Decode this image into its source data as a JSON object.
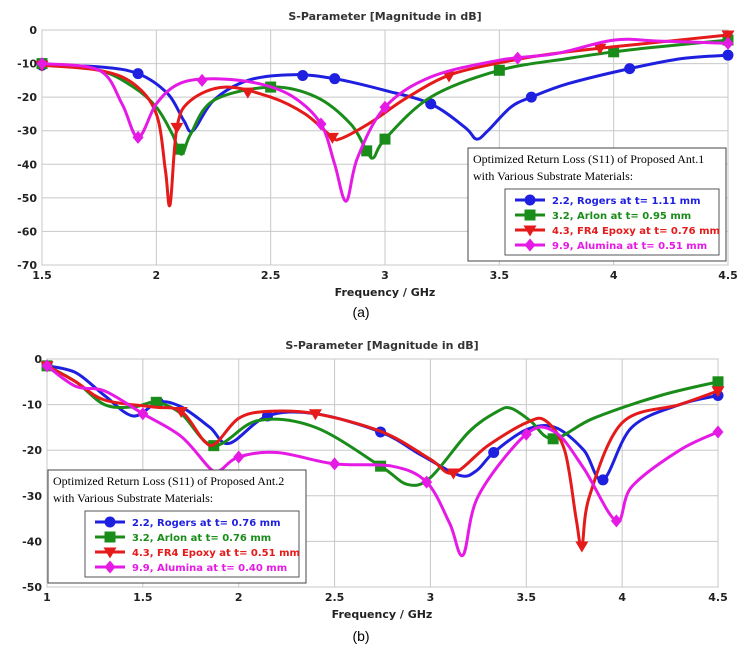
{
  "chart_data": [
    {
      "type": "line",
      "title": "S-Parameter [Magnitude in dB]",
      "xlabel": "Frequency / GHz",
      "ylabel": "",
      "caption": "(a)",
      "xlim": [
        1.5,
        4.5
      ],
      "ylim": [
        -70,
        0
      ],
      "xticks": [
        "1.5",
        "2",
        "2.5",
        "3",
        "3.5",
        "4",
        "4.5"
      ],
      "yticks": [
        "0",
        "-10",
        "-20",
        "-30",
        "-40",
        "-50",
        "-60",
        "-70"
      ],
      "grid": true,
      "legend_position": "bottom-right",
      "legend_title": [
        "Optimized Return Loss (S11) of Proposed Ant.1",
        "with Various Substrate Materials:"
      ],
      "series": [
        {
          "name": "2.2, Rogers at t= 1.11 mm",
          "color": "#1f1fe0",
          "marker": "circle",
          "x": [
            1.5,
            1.75,
            1.92,
            2.05,
            2.12,
            2.16,
            2.25,
            2.4,
            2.6,
            2.78,
            3.0,
            3.2,
            3.35,
            3.4,
            3.45,
            3.55,
            3.64,
            3.8,
            4.07,
            4.3,
            4.5
          ],
          "y": [
            -10.5,
            -11,
            -13,
            -19,
            -27,
            -30,
            -21,
            -15,
            -13.3,
            -14.5,
            -18,
            -22,
            -29,
            -32.5,
            -30,
            -23,
            -20,
            -16,
            -11.5,
            -8.5,
            -7.5
          ]
        },
        {
          "name": "3.2, Arlon at t= 0.95 mm",
          "color": "#1a8c1a",
          "marker": "square",
          "x": [
            1.5,
            1.75,
            1.9,
            2.0,
            2.07,
            2.11,
            2.15,
            2.25,
            2.5,
            2.7,
            2.85,
            2.92,
            2.95,
            3.0,
            3.2,
            3.5,
            3.8,
            4.0,
            4.2,
            4.5
          ],
          "y": [
            -10,
            -12,
            -17,
            -23,
            -31,
            -37,
            -31,
            -21,
            -17,
            -20,
            -28,
            -36,
            -38,
            -32.5,
            -20,
            -12,
            -8.5,
            -6.5,
            -5,
            -3
          ]
        },
        {
          "name": "4.3, FR4 Epoxy at t= 0.76 mm",
          "color": "#e51a1a",
          "marker": "triangle",
          "x": [
            1.5,
            1.75,
            1.9,
            2.0,
            2.04,
            2.06,
            2.09,
            2.15,
            2.3,
            2.5,
            2.65,
            2.77,
            2.8,
            2.85,
            2.95,
            3.1,
            3.3,
            3.6,
            3.8,
            4.0,
            4.5
          ],
          "y": [
            -10.5,
            -12,
            -16,
            -25,
            -42,
            -52,
            -29,
            -21,
            -17,
            -20,
            -25,
            -32,
            -32.5,
            -31,
            -27,
            -20,
            -13,
            -8.5,
            -6.5,
            -5,
            -1.5
          ]
        },
        {
          "name": "9.9, Alumina at t= 0.51 mm",
          "color": "#e51ae5",
          "marker": "diamond",
          "x": [
            1.5,
            1.75,
            1.85,
            1.92,
            2.0,
            2.1,
            2.25,
            2.45,
            2.6,
            2.72,
            2.78,
            2.83,
            2.88,
            3.0,
            3.2,
            3.5,
            3.75,
            4.0,
            4.2,
            4.5
          ],
          "y": [
            -10,
            -12,
            -22,
            -32,
            -22,
            -16,
            -14.5,
            -16,
            -20,
            -28,
            -40,
            -51,
            -38,
            -23,
            -14,
            -9,
            -7,
            -3,
            -3.3,
            -4
          ]
        }
      ]
    },
    {
      "type": "line",
      "title": "S-Parameter [Magnitude in dB]",
      "xlabel": "Frequency / GHz",
      "ylabel": "",
      "caption": "(b)",
      "xlim": [
        1,
        4.5
      ],
      "ylim": [
        -50,
        0
      ],
      "xticks": [
        "1",
        "1.5",
        "2",
        "2.5",
        "3",
        "3.5",
        "4",
        "4.5"
      ],
      "yticks": [
        "0",
        "-10",
        "-20",
        "-30",
        "-40",
        "-50"
      ],
      "grid": true,
      "legend_position": "bottom-left",
      "legend_title": [
        "Optimized Return Loss (S11) of Proposed Ant.2",
        "with Various Substrate Materials:"
      ],
      "series": [
        {
          "name": "2.2, Rogers at t= 0.76 mm",
          "color": "#1f1fe0",
          "marker": "circle",
          "x": [
            1.0,
            1.15,
            1.3,
            1.45,
            1.58,
            1.7,
            1.85,
            1.95,
            2.15,
            2.4,
            2.74,
            2.95,
            3.15,
            3.24,
            3.33,
            3.5,
            3.65,
            3.8,
            3.9,
            4.05,
            4.3,
            4.5
          ],
          "y": [
            -1.5,
            -3,
            -8,
            -12.5,
            -9.5,
            -10.5,
            -15,
            -18.5,
            -12.5,
            -12,
            -16,
            -21,
            -25.5,
            -24.5,
            -20.5,
            -15.5,
            -15,
            -20,
            -26.5,
            -15,
            -10,
            -8
          ]
        },
        {
          "name": "3.2, Arlon at t= 0.76 mm",
          "color": "#1a8c1a",
          "marker": "square",
          "x": [
            1.0,
            1.15,
            1.3,
            1.45,
            1.57,
            1.7,
            1.87,
            2.1,
            2.4,
            2.74,
            2.88,
            3.0,
            3.2,
            3.35,
            3.42,
            3.52,
            3.64,
            3.85,
            4.2,
            4.5
          ],
          "y": [
            -1.5,
            -5,
            -10,
            -10.5,
            -9.5,
            -12,
            -19,
            -13.5,
            -15,
            -23.5,
            -27.5,
            -26,
            -16,
            -11.5,
            -10.8,
            -13.5,
            -17.5,
            -13,
            -8,
            -5
          ]
        },
        {
          "name": "4.3, FR4 Epoxy at t= 0.51 mm",
          "color": "#e51a1a",
          "marker": "triangle",
          "x": [
            1.0,
            1.15,
            1.3,
            1.55,
            1.7,
            1.82,
            1.88,
            2.0,
            2.15,
            2.4,
            2.75,
            3.0,
            3.12,
            3.3,
            3.5,
            3.6,
            3.7,
            3.76,
            3.79,
            3.83,
            4.0,
            4.3,
            4.5
          ],
          "y": [
            -1.5,
            -5,
            -9,
            -10.5,
            -11.5,
            -18,
            -18.5,
            -13,
            -11.5,
            -12,
            -16,
            -22,
            -25,
            -19,
            -14,
            -13.5,
            -20,
            -35,
            -41,
            -30,
            -14,
            -10,
            -7
          ]
        },
        {
          "name": "9.9, Alumina at t= 0.40 mm",
          "color": "#e51ae5",
          "marker": "diamond",
          "x": [
            1.0,
            1.15,
            1.3,
            1.5,
            1.7,
            1.85,
            1.9,
            2.0,
            2.2,
            2.5,
            2.8,
            2.98,
            3.1,
            3.17,
            3.25,
            3.5,
            3.65,
            3.8,
            3.97,
            4.05,
            4.3,
            4.5
          ],
          "y": [
            -1.5,
            -6,
            -7,
            -12,
            -17,
            -24,
            -24.5,
            -21.5,
            -20.5,
            -23,
            -23.5,
            -27,
            -36,
            -43,
            -30,
            -16.5,
            -16,
            -24,
            -35.5,
            -28,
            -20,
            -16
          ]
        }
      ]
    }
  ]
}
